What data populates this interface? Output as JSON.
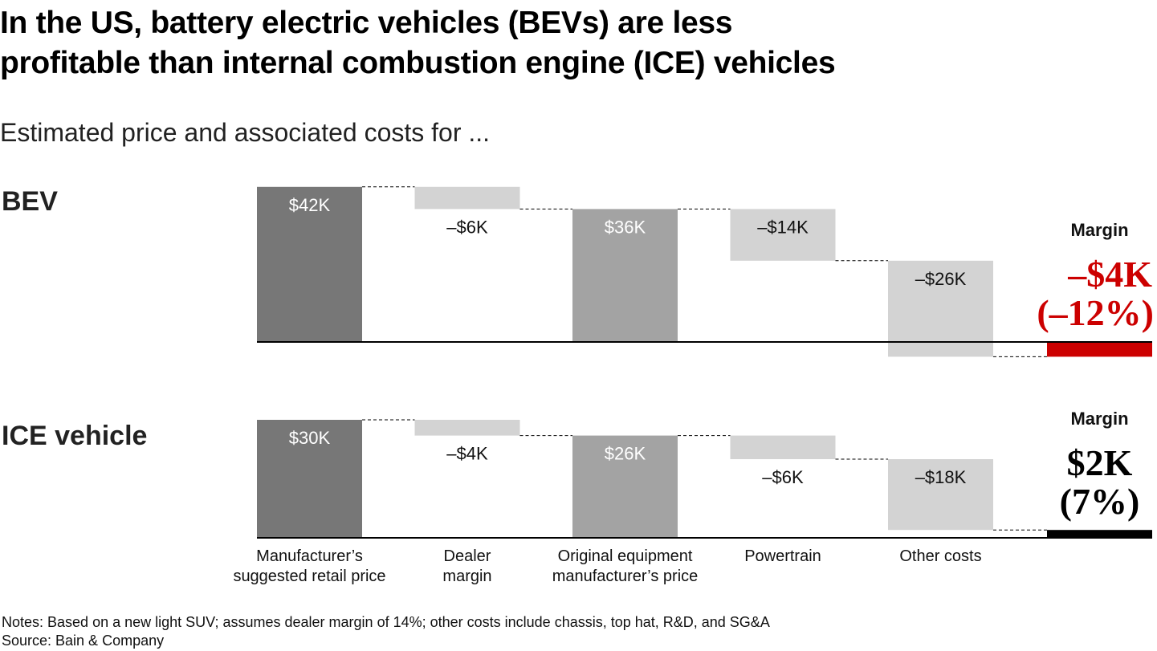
{
  "title_line1": "In the US, battery electric vehicles (BEVs) are less",
  "title_line2": "profitable than internal combustion engine (ICE) vehicles",
  "subtitle": "Estimated price and associated costs for ...",
  "notes": "Notes: Based on a new light SUV; assumes dealer margin of 14%; other costs include chassis, top hat, R&D, and SG&A",
  "source": "Source: Bain & Company",
  "colors": {
    "total_dark": "#777777",
    "total_mid": "#a3a3a3",
    "decrease": "#d3d3d3",
    "negative_margin": "#cc0000",
    "positive_margin": "#000000"
  },
  "chart_data": [
    {
      "type": "waterfall",
      "panel_label": "BEV",
      "categories": [
        "Manufacturer's suggested retail price",
        "Dealer margin",
        "Original equipment manufacturer's price",
        "Powertrain",
        "Other costs",
        "Margin"
      ],
      "values": [
        42,
        -6,
        36,
        -14,
        -26,
        -4
      ],
      "kinds": [
        "total",
        "delta",
        "total",
        "delta",
        "delta",
        "result"
      ],
      "labels": [
        "$42K",
        "–$6K",
        "$36K",
        "–$14K",
        "–$26K"
      ],
      "margin_title": "Margin",
      "margin_value": "–$4K",
      "margin_percent": "(–12%)",
      "unit": "$K"
    },
    {
      "type": "waterfall",
      "panel_label": "ICE vehicle",
      "categories": [
        "Manufacturer's suggested retail price",
        "Dealer margin",
        "Original equipment manufacturer's price",
        "Powertrain",
        "Other costs",
        "Margin"
      ],
      "values": [
        30,
        -4,
        26,
        -6,
        -18,
        2
      ],
      "kinds": [
        "total",
        "delta",
        "total",
        "delta",
        "delta",
        "result"
      ],
      "labels": [
        "$30K",
        "–$4K",
        "$26K",
        "–$6K",
        "–$18K"
      ],
      "margin_title": "Margin",
      "margin_value": "$2K",
      "margin_percent": "(7%)",
      "unit": "$K"
    }
  ],
  "axis_labels": [
    [
      "Manufacturer’s",
      "suggested retail price"
    ],
    [
      "Dealer",
      "margin"
    ],
    [
      "Original equipment",
      "manufacturer’s price"
    ],
    [
      "Powertrain"
    ],
    [
      "Other costs"
    ]
  ]
}
